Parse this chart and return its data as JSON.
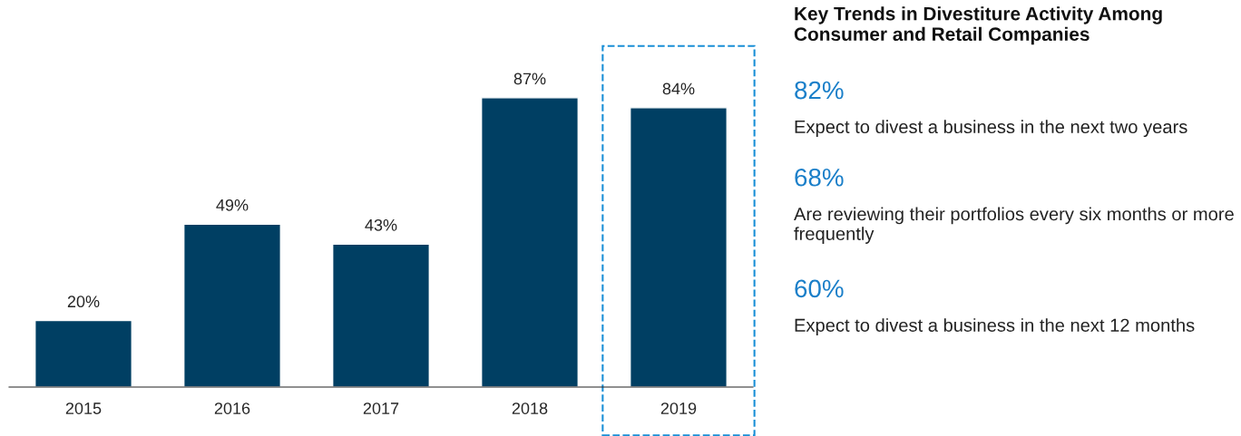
{
  "chart_data": [
    {
      "type": "bar",
      "categories": [
        "2015",
        "2016",
        "2017",
        "2018",
        "2019"
      ],
      "values": [
        20,
        49,
        43,
        87,
        84
      ],
      "value_labels": [
        "20%",
        "49%",
        "43%",
        "87%",
        "84%"
      ],
      "color": "#003f63",
      "tick_labels": "x",
      "grid": false,
      "legend": false
    },
    {
      "type": "other",
      "title": "Key Trends in Divestiture Activity Among Consumer and Retail Companies",
      "annotations": [
        "82%",
        "Expect to divest a business in the next two years",
        "68%",
        "Are reviewing their portfolios every six months or more frequently",
        "60%",
        "Expect to divest a business in the next 12 months"
      ]
    }
  ]
}
